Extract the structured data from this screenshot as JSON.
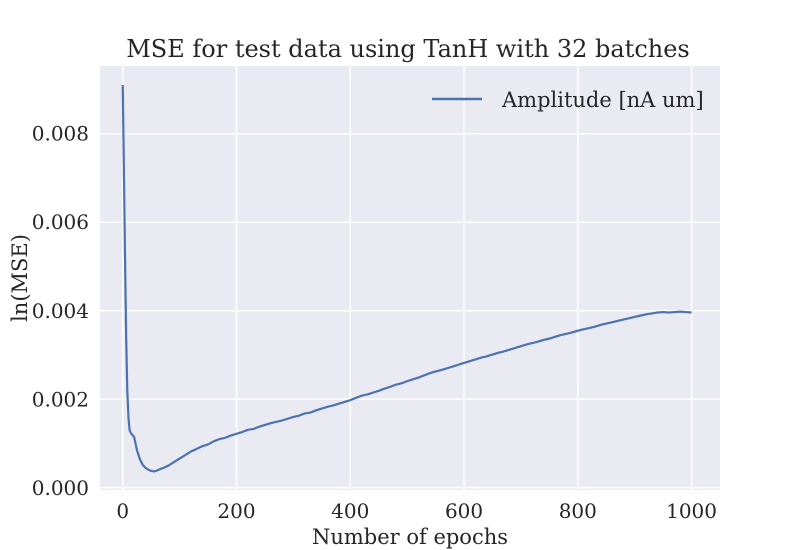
{
  "chart_data": {
    "type": "line",
    "title": "MSE for test data using TanH with 32 batches",
    "xlabel": "Number of epochs",
    "ylabel": "ln(MSE)",
    "xlim": [
      -40,
      1050
    ],
    "ylim": [
      -5e-05,
      0.00953
    ],
    "xticks": [
      0,
      200,
      400,
      600,
      800,
      1000
    ],
    "yticks": [
      0.0,
      0.002,
      0.004,
      0.006,
      0.008
    ],
    "xtick_labels": [
      "0",
      "200",
      "400",
      "600",
      "800",
      "1000"
    ],
    "ytick_labels": [
      "0.000",
      "0.002",
      "0.004",
      "0.006",
      "0.008"
    ],
    "grid": true,
    "legend_position": "top-right",
    "background": "#eaeaf2",
    "series": [
      {
        "name": "Amplitude [nA um]",
        "color": "#4c72b0",
        "x": [
          0,
          2,
          4,
          6,
          8,
          10,
          12,
          15,
          20,
          25,
          30,
          35,
          40,
          45,
          50,
          55,
          60,
          65,
          70,
          75,
          80,
          90,
          100,
          110,
          120,
          130,
          140,
          150,
          160,
          170,
          180,
          190,
          200,
          210,
          220,
          230,
          240,
          250,
          260,
          270,
          280,
          290,
          300,
          310,
          320,
          330,
          340,
          350,
          360,
          370,
          380,
          390,
          400,
          410,
          420,
          430,
          440,
          450,
          460,
          470,
          480,
          490,
          500,
          510,
          520,
          530,
          540,
          550,
          560,
          570,
          580,
          590,
          600,
          610,
          620,
          630,
          640,
          650,
          660,
          670,
          680,
          690,
          700,
          710,
          720,
          730,
          740,
          750,
          760,
          770,
          780,
          790,
          800,
          810,
          820,
          830,
          840,
          850,
          860,
          870,
          880,
          890,
          900,
          910,
          920,
          930,
          940,
          950,
          960,
          970,
          980,
          990,
          1000
        ],
        "values": [
          0.0091,
          0.0072,
          0.0052,
          0.0034,
          0.0022,
          0.0016,
          0.0013,
          0.00122,
          0.00115,
          0.00085,
          0.00065,
          0.00052,
          0.00045,
          0.00041,
          0.00038,
          0.00037,
          0.00039,
          0.00042,
          0.00044,
          0.00047,
          0.0005,
          0.00058,
          0.00066,
          0.00074,
          0.00082,
          0.00088,
          0.00094,
          0.00098,
          0.00105,
          0.0011,
          0.00113,
          0.00118,
          0.00122,
          0.00126,
          0.00131,
          0.00133,
          0.00138,
          0.00142,
          0.00146,
          0.00149,
          0.00152,
          0.00156,
          0.0016,
          0.00163,
          0.00168,
          0.0017,
          0.00175,
          0.00179,
          0.00183,
          0.00186,
          0.0019,
          0.00194,
          0.00198,
          0.00203,
          0.00208,
          0.00211,
          0.00215,
          0.00219,
          0.00224,
          0.00228,
          0.00233,
          0.00236,
          0.00241,
          0.00245,
          0.00249,
          0.00254,
          0.00259,
          0.00263,
          0.00266,
          0.0027,
          0.00274,
          0.00278,
          0.00282,
          0.00286,
          0.0029,
          0.00294,
          0.00297,
          0.00301,
          0.00305,
          0.00308,
          0.00312,
          0.00316,
          0.0032,
          0.00324,
          0.00327,
          0.0033,
          0.00334,
          0.00337,
          0.00341,
          0.00345,
          0.00348,
          0.00351,
          0.00355,
          0.00358,
          0.00361,
          0.00364,
          0.00368,
          0.00371,
          0.00374,
          0.00377,
          0.0038,
          0.00383,
          0.00386,
          0.00389,
          0.00392,
          0.00394,
          0.00396,
          0.00397,
          0.00396,
          0.00397,
          0.00398,
          0.00397,
          0.00396
        ]
      }
    ]
  }
}
